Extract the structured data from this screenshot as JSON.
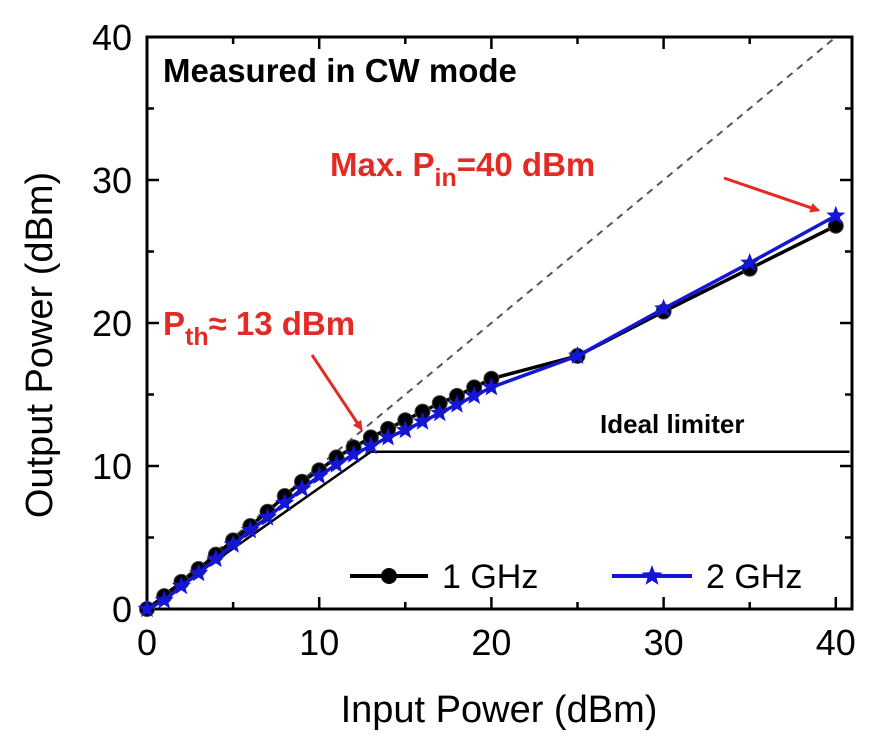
{
  "chart_data": {
    "type": "line",
    "title": "Measured in CW mode",
    "xlabel": "Input Power (dBm)",
    "ylabel": "Output Power (dBm)",
    "xlim": [
      0,
      40
    ],
    "ylim": [
      0,
      40
    ],
    "xticks": [
      "0",
      "10",
      "20",
      "30",
      "40"
    ],
    "yticks": [
      "0",
      "10",
      "20",
      "30",
      "40"
    ],
    "grid": false,
    "legend_position": "bottom-right",
    "series": [
      {
        "name": "1 GHz",
        "color": "#000000",
        "marker": "circle",
        "x": [
          0,
          1,
          2,
          3,
          4,
          5,
          6,
          7,
          8,
          9,
          10,
          11,
          12,
          13,
          14,
          15,
          16,
          17,
          18,
          19,
          20,
          25,
          30,
          35,
          40
        ],
        "y": [
          0,
          0.9,
          1.9,
          2.8,
          3.8,
          4.8,
          5.8,
          6.8,
          7.9,
          8.9,
          9.7,
          10.6,
          11.3,
          12.0,
          12.6,
          13.2,
          13.8,
          14.4,
          14.9,
          15.5,
          16.1,
          17.7,
          20.8,
          23.8,
          26.8
        ]
      },
      {
        "name": "2 GHz",
        "color": "#1515d6",
        "marker": "star",
        "x": [
          0,
          1,
          2,
          3,
          4,
          5,
          6,
          7,
          8,
          9,
          10,
          11,
          12,
          13,
          14,
          15,
          16,
          17,
          18,
          19,
          20,
          25,
          30,
          35,
          40
        ],
        "y": [
          0,
          0.6,
          1.6,
          2.5,
          3.5,
          4.5,
          5.5,
          6.4,
          7.4,
          8.4,
          9.3,
          10.1,
          10.8,
          11.4,
          12.0,
          12.5,
          13.1,
          13.7,
          14.3,
          14.9,
          15.5,
          17.7,
          21.0,
          24.2,
          27.5
        ]
      }
    ],
    "reference_lines": [
      {
        "label": "ideal-1to1",
        "x": [
          0,
          40
        ],
        "y": [
          0,
          40
        ],
        "style": "dashed",
        "color": "#555555"
      },
      {
        "label": "Ideal limiter",
        "x": [
          0,
          13,
          41
        ],
        "y": [
          0,
          11,
          11
        ],
        "style": "solid",
        "color": "#000000"
      }
    ],
    "annotations": {
      "threshold": {
        "prefix": "P",
        "subscript": "th",
        "suffix": "≈ 13 dBm",
        "arrow_to": [
          12.8,
          11.6
        ],
        "color": "#e32b26"
      },
      "max_input": {
        "prefix": "Max. P",
        "subscript": "in",
        "suffix": "=40 dBm",
        "arrow_to": [
          39.8,
          27.6
        ],
        "color": "#e32b26"
      },
      "limiter_label": "Ideal limiter"
    }
  }
}
